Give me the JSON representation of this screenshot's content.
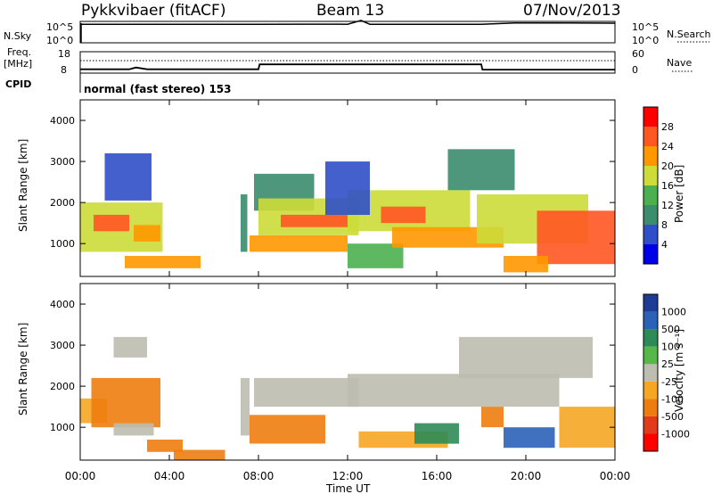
{
  "header": {
    "radar": "Pykkvibaer (fitACF)",
    "beam": "Beam 13",
    "date": "07/Nov/2013"
  },
  "top_panel": {
    "left_label": "N.Sky",
    "left_ticks": [
      "10^5",
      "10^0"
    ],
    "right_label": "N.Search",
    "right_ticks": [
      "10^5",
      "10^0"
    ]
  },
  "freq_panel": {
    "left_label_1": "Freq.",
    "left_label_2": "[MHz]",
    "left_ticks": [
      "18",
      "8"
    ],
    "right_label": "Nave",
    "right_ticks": [
      "60",
      "0"
    ]
  },
  "cpid": {
    "label": "CPID",
    "mode": "normal (fast stereo) 153"
  },
  "x_axis": {
    "label": "Time UT",
    "ticks": [
      "00:00",
      "04:00",
      "08:00",
      "12:00",
      "16:00",
      "20:00",
      "00:00"
    ]
  },
  "power_panel": {
    "ylabel": "Slant Range [km]",
    "yticks": [
      "1000",
      "2000",
      "3000",
      "4000"
    ],
    "colorbar_label": "Power [dB]",
    "colorbar_ticks": [
      "4",
      "8",
      "12",
      "16",
      "20",
      "24",
      "28"
    ]
  },
  "velocity_panel": {
    "ylabel": "Slant Range [km]",
    "yticks": [
      "1000",
      "2000",
      "3000",
      "4000"
    ],
    "colorbar_label": "Velocity [m s⁻¹]",
    "colorbar_ticks": [
      "1000",
      "500",
      "100",
      "25",
      "-25",
      "-100",
      "-500",
      "-1000"
    ]
  },
  "colors": {
    "power_scale": [
      "#0000e6",
      "#2f4fc8",
      "#3c8c6e",
      "#4caf50",
      "#cddc39",
      "#ff9800",
      "#ff5722",
      "#ff0000"
    ],
    "velocity_scale": [
      "#1e3c96",
      "#2b62b8",
      "#2e8b57",
      "#55b848",
      "#bdbdb0",
      "#f5a623",
      "#ee7d10",
      "#e23b1b",
      "#ff0000"
    ]
  },
  "chart_data": [
    {
      "type": "line",
      "title": "N.Sky / N.Search",
      "x_unit": "hours UT",
      "xlim": [
        0,
        24
      ],
      "series": [
        {
          "name": "N.Sky",
          "x": [
            0,
            2,
            4,
            6,
            8,
            10,
            12,
            12.6,
            13,
            16,
            18,
            19.5,
            22,
            24
          ],
          "values": [
            30000,
            30000,
            32000,
            31000,
            30000,
            33000,
            32000,
            300000,
            32000,
            31000,
            30000,
            70000,
            65000,
            60000
          ]
        }
      ]
    },
    {
      "type": "line",
      "title": "Freq. / Nave",
      "x_unit": "hours UT",
      "xlim": [
        0,
        24
      ],
      "ylim": [
        8,
        18
      ],
      "series": [
        {
          "name": "Freq.",
          "x": [
            0,
            2.2,
            2.5,
            3.0,
            8.0,
            8.05,
            18.0,
            18.05,
            24
          ],
          "values": [
            9.5,
            9.5,
            10.4,
            9.5,
            9.5,
            12.0,
            12.0,
            9.3,
            9.3
          ]
        }
      ]
    },
    {
      "type": "heatmap",
      "title": "Power [dB]",
      "x_unit": "hours UT",
      "y_unit": "slant range km",
      "xlim": [
        0,
        24
      ],
      "ylim": [
        200,
        4500
      ],
      "zlim": [
        0,
        32
      ],
      "regions": [
        {
          "x0": 0.0,
          "x1": 3.7,
          "y0": 800,
          "y1": 2000,
          "z": 18
        },
        {
          "x0": 0.6,
          "x1": 2.2,
          "y0": 1300,
          "y1": 1700,
          "z": 24
        },
        {
          "x0": 2.4,
          "x1": 3.6,
          "y0": 1050,
          "y1": 1450,
          "z": 23
        },
        {
          "x0": 1.1,
          "x1": 3.2,
          "y0": 2050,
          "y1": 3200,
          "z": 6
        },
        {
          "x0": 2.0,
          "x1": 5.4,
          "y0": 400,
          "y1": 700,
          "z": 22
        },
        {
          "x0": 7.2,
          "x1": 7.5,
          "y0": 800,
          "y1": 2200,
          "z": 8
        },
        {
          "x0": 7.8,
          "x1": 10.5,
          "y0": 1800,
          "y1": 2700,
          "z": 8
        },
        {
          "x0": 8.0,
          "x1": 12.5,
          "y0": 1200,
          "y1": 2100,
          "z": 16
        },
        {
          "x0": 9.0,
          "x1": 12.0,
          "y0": 1400,
          "y1": 1700,
          "z": 24
        },
        {
          "x0": 7.6,
          "x1": 12.0,
          "y0": 800,
          "y1": 1200,
          "z": 20
        },
        {
          "x0": 12.0,
          "x1": 17.5,
          "y0": 1300,
          "y1": 2300,
          "z": 17
        },
        {
          "x0": 13.5,
          "x1": 15.5,
          "y0": 1500,
          "y1": 1900,
          "z": 26
        },
        {
          "x0": 11.0,
          "x1": 13.0,
          "y0": 1700,
          "y1": 3000,
          "z": 7
        },
        {
          "x0": 12.0,
          "x1": 14.5,
          "y0": 400,
          "y1": 1000,
          "z": 12
        },
        {
          "x0": 14.0,
          "x1": 19.0,
          "y0": 900,
          "y1": 1400,
          "z": 20
        },
        {
          "x0": 16.5,
          "x1": 19.5,
          "y0": 2300,
          "y1": 3300,
          "z": 9
        },
        {
          "x0": 17.8,
          "x1": 22.8,
          "y0": 1000,
          "y1": 2200,
          "z": 18
        },
        {
          "x0": 20.5,
          "x1": 24.0,
          "y0": 500,
          "y1": 1800,
          "z": 26
        },
        {
          "x0": 19.0,
          "x1": 21.0,
          "y0": 300,
          "y1": 700,
          "z": 23
        }
      ]
    },
    {
      "type": "heatmap",
      "title": "Velocity [m s⁻¹]",
      "x_unit": "hours UT",
      "y_unit": "slant range km",
      "xlim": [
        0,
        24
      ],
      "ylim": [
        200,
        4500
      ],
      "zlim": [
        -1000,
        1000
      ],
      "regions": [
        {
          "x0": 0.0,
          "x1": 1.2,
          "y0": 1100,
          "y1": 1700,
          "z": -50
        },
        {
          "x0": 0.5,
          "x1": 3.6,
          "y0": 1000,
          "y1": 2200,
          "z": -120
        },
        {
          "x0": 1.5,
          "x1": 3.3,
          "y0": 800,
          "y1": 1100,
          "z": 0
        },
        {
          "x0": 1.5,
          "x1": 3.0,
          "y0": 2700,
          "y1": 3200,
          "z": 0
        },
        {
          "x0": 3.0,
          "x1": 4.6,
          "y0": 400,
          "y1": 700,
          "z": -120
        },
        {
          "x0": 4.2,
          "x1": 6.5,
          "y0": 200,
          "y1": 450,
          "z": -150
        },
        {
          "x0": 7.2,
          "x1": 7.6,
          "y0": 800,
          "y1": 2200,
          "z": 0
        },
        {
          "x0": 7.8,
          "x1": 12.5,
          "y0": 1500,
          "y1": 2200,
          "z": 0
        },
        {
          "x0": 7.6,
          "x1": 11.0,
          "y0": 600,
          "y1": 1300,
          "z": -120
        },
        {
          "x0": 12.0,
          "x1": 21.5,
          "y0": 1500,
          "y1": 2300,
          "z": 0
        },
        {
          "x0": 17.0,
          "x1": 23.0,
          "y0": 2200,
          "y1": 3200,
          "z": 0
        },
        {
          "x0": 12.5,
          "x1": 16.5,
          "y0": 500,
          "y1": 900,
          "z": -90
        },
        {
          "x0": 15.0,
          "x1": 17.0,
          "y0": 600,
          "y1": 1100,
          "z": 300
        },
        {
          "x0": 18.0,
          "x1": 19.0,
          "y0": 1000,
          "y1": 1500,
          "z": -300
        },
        {
          "x0": 19.0,
          "x1": 21.3,
          "y0": 500,
          "y1": 1000,
          "z": 800
        },
        {
          "x0": 21.5,
          "x1": 24.0,
          "y0": 500,
          "y1": 1500,
          "z": -100
        }
      ]
    }
  ]
}
